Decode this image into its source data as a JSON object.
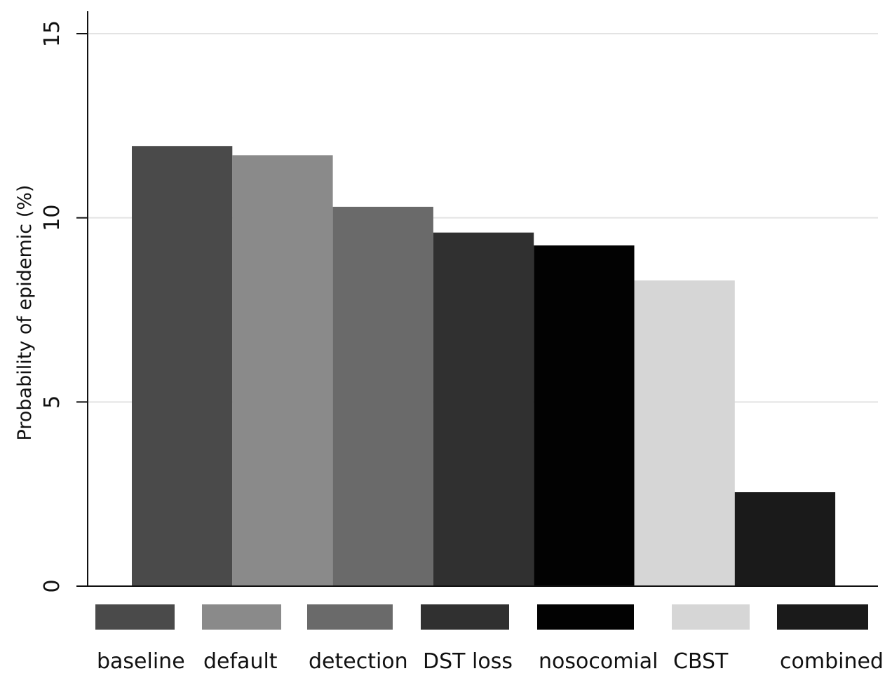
{
  "chart_data": {
    "type": "bar",
    "title": "",
    "xlabel": "",
    "ylabel": "Probability of epidemic (%)",
    "ylim": [
      0,
      15
    ],
    "yticks": [
      0,
      5,
      10,
      15
    ],
    "grid": true,
    "legend_placement": "bottom",
    "categories": [
      "baseline",
      "default",
      "detection",
      "DST loss",
      "nosocomial",
      "CBST",
      "combined"
    ],
    "values": [
      11.95,
      11.7,
      10.3,
      9.6,
      9.25,
      8.3,
      2.55
    ],
    "colors": [
      "#4a4a4a",
      "#8a8a8a",
      "#6a6a6a",
      "#303030",
      "#020202",
      "#d6d6d6",
      "#1a1a1a"
    ]
  }
}
